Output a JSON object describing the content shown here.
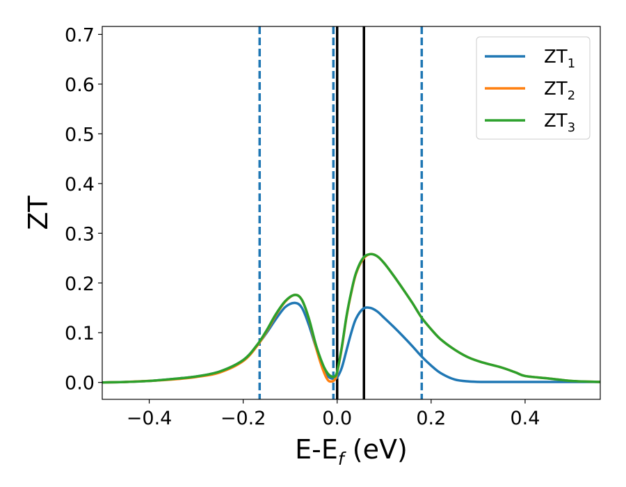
{
  "chart_data": {
    "type": "line",
    "title": "",
    "xlabel": "E-E",
    "xlabel_subscript": "f",
    "xlabel_unit": " (eV)",
    "ylabel": "ZT",
    "xlim": [
      -0.5,
      0.56
    ],
    "ylim": [
      -0.034,
      0.716
    ],
    "xticks": [
      -0.4,
      -0.2,
      0.0,
      0.2,
      0.4
    ],
    "xtick_labels": [
      "−0.4",
      "−0.2",
      "0.0",
      "0.2",
      "0.4"
    ],
    "yticks": [
      0.0,
      0.1,
      0.2,
      0.3,
      0.4,
      0.5,
      0.6,
      0.7
    ],
    "ytick_labels": [
      "0.0",
      "0.1",
      "0.2",
      "0.3",
      "0.4",
      "0.5",
      "0.6",
      "0.7"
    ],
    "grid": false,
    "legend_position": "top-right",
    "series": [
      {
        "name": "ZT",
        "name_subscript": "1",
        "color": "#1f77b4",
        "x": [
          -0.5,
          -0.45,
          -0.4,
          -0.35,
          -0.3,
          -0.25,
          -0.2,
          -0.17,
          -0.15,
          -0.13,
          -0.11,
          -0.09,
          -0.075,
          -0.06,
          -0.045,
          -0.03,
          -0.02,
          -0.012,
          -0.005,
          0.0,
          0.01,
          0.02,
          0.03,
          0.04,
          0.055,
          0.07,
          0.085,
          0.1,
          0.12,
          0.14,
          0.16,
          0.18,
          0.2,
          0.22,
          0.25,
          0.28,
          0.31,
          0.35,
          0.4,
          0.45,
          0.5,
          0.56
        ],
        "y": [
          0.0,
          0.001,
          0.003,
          0.007,
          0.012,
          0.022,
          0.045,
          0.075,
          0.1,
          0.128,
          0.152,
          0.16,
          0.15,
          0.115,
          0.07,
          0.03,
          0.013,
          0.008,
          0.008,
          0.01,
          0.03,
          0.065,
          0.1,
          0.128,
          0.148,
          0.15,
          0.143,
          0.13,
          0.112,
          0.093,
          0.073,
          0.052,
          0.034,
          0.019,
          0.006,
          0.002,
          0.001,
          0.001,
          0.001,
          0.001,
          0.001,
          0.001
        ]
      },
      {
        "name": "ZT",
        "name_subscript": "2",
        "color": "#ff7f0e",
        "x": [
          -0.5,
          -0.45,
          -0.4,
          -0.35,
          -0.3,
          -0.25,
          -0.2,
          -0.17,
          -0.15,
          -0.13,
          -0.11,
          -0.09,
          -0.075,
          -0.06,
          -0.045,
          -0.03,
          -0.02,
          -0.012,
          -0.005,
          0.0,
          0.01,
          0.02,
          0.03,
          0.04,
          0.055,
          0.07,
          0.085,
          0.1,
          0.12,
          0.14,
          0.16,
          0.18,
          0.2,
          0.22,
          0.25,
          0.28,
          0.31,
          0.35,
          0.38,
          0.4,
          0.45,
          0.5,
          0.56
        ],
        "y": [
          0.0,
          0.001,
          0.003,
          0.006,
          0.011,
          0.02,
          0.043,
          0.074,
          0.103,
          0.136,
          0.163,
          0.176,
          0.166,
          0.127,
          0.07,
          0.025,
          0.005,
          0.002,
          0.006,
          0.02,
          0.07,
          0.132,
          0.18,
          0.218,
          0.248,
          0.258,
          0.254,
          0.24,
          0.215,
          0.188,
          0.16,
          0.13,
          0.107,
          0.087,
          0.066,
          0.05,
          0.04,
          0.03,
          0.02,
          0.013,
          0.008,
          0.003,
          0.001
        ]
      },
      {
        "name": "ZT",
        "name_subscript": "3",
        "color": "#2ca02c",
        "x": [
          -0.5,
          -0.45,
          -0.4,
          -0.35,
          -0.3,
          -0.25,
          -0.2,
          -0.17,
          -0.15,
          -0.13,
          -0.11,
          -0.09,
          -0.075,
          -0.06,
          -0.045,
          -0.03,
          -0.02,
          -0.012,
          -0.005,
          0.0,
          0.01,
          0.02,
          0.03,
          0.04,
          0.055,
          0.07,
          0.085,
          0.1,
          0.12,
          0.14,
          0.16,
          0.18,
          0.2,
          0.22,
          0.25,
          0.28,
          0.31,
          0.35,
          0.38,
          0.4,
          0.45,
          0.5,
          0.56
        ],
        "y": [
          0.0,
          0.001,
          0.003,
          0.007,
          0.012,
          0.022,
          0.045,
          0.076,
          0.105,
          0.138,
          0.164,
          0.176,
          0.166,
          0.128,
          0.075,
          0.035,
          0.018,
          0.012,
          0.012,
          0.022,
          0.072,
          0.134,
          0.182,
          0.22,
          0.25,
          0.258,
          0.254,
          0.24,
          0.215,
          0.188,
          0.16,
          0.13,
          0.107,
          0.087,
          0.066,
          0.05,
          0.04,
          0.03,
          0.02,
          0.013,
          0.008,
          0.003,
          0.001
        ]
      }
    ],
    "vertical_lines": [
      {
        "x": -0.165,
        "style": "dashed",
        "color": "#1f77b4"
      },
      {
        "x": -0.008,
        "style": "dashed",
        "color": "#1f77b4"
      },
      {
        "x": 0.18,
        "style": "dashed",
        "color": "#1f77b4"
      },
      {
        "x": 0.0,
        "style": "solid",
        "color": "#000000"
      },
      {
        "x": 0.057,
        "style": "solid",
        "color": "#000000"
      }
    ]
  }
}
